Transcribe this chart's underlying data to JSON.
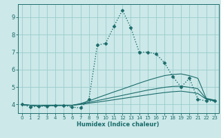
{
  "xlabel": "Humidex (Indice chaleur)",
  "ylabel": "",
  "bg_color": "#cce8e8",
  "grid_color": "#99cccc",
  "line_color": "#1a6b6b",
  "xlim": [
    -0.5,
    23.5
  ],
  "ylim": [
    3.5,
    9.75
  ],
  "xticks": [
    0,
    1,
    2,
    3,
    4,
    5,
    6,
    7,
    8,
    9,
    10,
    11,
    12,
    13,
    14,
    15,
    16,
    17,
    18,
    19,
    20,
    21,
    22,
    23
  ],
  "yticks": [
    4,
    5,
    6,
    7,
    8,
    9
  ],
  "series": [
    {
      "x": [
        0,
        1,
        2,
        3,
        4,
        5,
        6,
        7,
        8,
        9,
        10,
        11,
        12,
        13,
        14,
        15,
        16,
        17,
        18,
        19,
        20,
        21,
        22,
        23
      ],
      "y": [
        4.0,
        3.85,
        3.9,
        3.9,
        3.95,
        3.95,
        3.85,
        3.8,
        4.3,
        7.4,
        7.5,
        8.5,
        9.4,
        8.4,
        7.0,
        7.0,
        6.9,
        6.4,
        5.6,
        5.0,
        5.5,
        4.3,
        4.2,
        4.2
      ],
      "linestyle": "dotted",
      "marker": "D",
      "markersize": 2.5,
      "linewidth": 1.0
    },
    {
      "x": [
        0,
        1,
        2,
        3,
        4,
        5,
        6,
        7,
        8,
        9,
        10,
        11,
        12,
        13,
        14,
        15,
        16,
        17,
        18,
        19,
        20,
        21,
        22,
        23
      ],
      "y": [
        4.0,
        3.95,
        3.92,
        3.95,
        3.95,
        3.95,
        3.95,
        4.05,
        4.2,
        4.38,
        4.55,
        4.72,
        4.88,
        5.05,
        5.22,
        5.38,
        5.52,
        5.65,
        5.72,
        5.75,
        5.65,
        5.5,
        4.35,
        4.25
      ],
      "linestyle": "solid",
      "marker": null,
      "markersize": 0,
      "linewidth": 0.8
    },
    {
      "x": [
        0,
        1,
        2,
        3,
        4,
        5,
        6,
        7,
        8,
        9,
        10,
        11,
        12,
        13,
        14,
        15,
        16,
        17,
        18,
        19,
        20,
        21,
        22,
        23
      ],
      "y": [
        4.0,
        3.95,
        3.92,
        3.94,
        3.94,
        3.95,
        3.95,
        4.02,
        4.12,
        4.22,
        4.32,
        4.42,
        4.52,
        4.62,
        4.72,
        4.82,
        4.9,
        4.98,
        5.03,
        5.05,
        4.98,
        4.9,
        4.32,
        4.22
      ],
      "linestyle": "solid",
      "marker": null,
      "markersize": 0,
      "linewidth": 0.8
    },
    {
      "x": [
        0,
        1,
        2,
        3,
        4,
        5,
        6,
        7,
        8,
        9,
        10,
        11,
        12,
        13,
        14,
        15,
        16,
        17,
        18,
        19,
        20,
        21,
        22,
        23
      ],
      "y": [
        4.0,
        3.95,
        3.92,
        3.94,
        3.94,
        3.95,
        3.95,
        4.0,
        4.07,
        4.13,
        4.2,
        4.27,
        4.34,
        4.41,
        4.48,
        4.55,
        4.62,
        4.68,
        4.73,
        4.76,
        4.7,
        4.63,
        4.3,
        4.2
      ],
      "linestyle": "solid",
      "marker": null,
      "markersize": 0,
      "linewidth": 0.8
    }
  ]
}
